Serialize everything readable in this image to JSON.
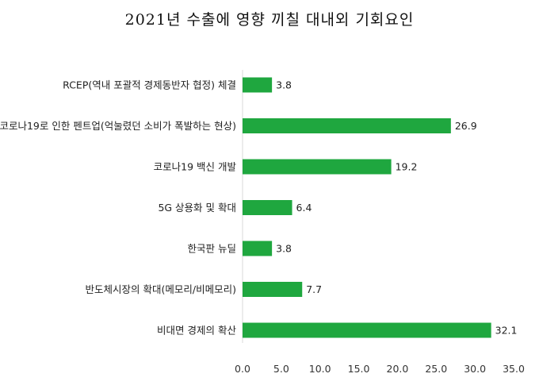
{
  "chart_data": {
    "type": "bar",
    "orientation": "horizontal",
    "title": "2021년 수출에 영향 끼칠 대내외 기회요인",
    "categories": [
      "RCEP(역내 포괄적 경제동반자 협정) 체결",
      "코로나19로 인한 펜트업(억눌렸던 소비가 폭발하는 현상)",
      "코로나19 백신 개발",
      "5G 상용화 및 확대",
      "한국판 뉴딜",
      "반도체시장의 확대(메모리/비메모리)",
      "비대면 경제의 확산"
    ],
    "values": [
      3.8,
      26.9,
      19.2,
      6.4,
      3.8,
      7.7,
      32.1
    ],
    "value_labels": [
      "3.8",
      "26.9",
      "19.2",
      "6.4",
      "3.8",
      "7.7",
      "32.1"
    ],
    "xlim": [
      0,
      35
    ],
    "xticks": [
      "0.0",
      "5.0",
      "10.0",
      "15.0",
      "20.0",
      "25.0",
      "30.0",
      "35.0"
    ],
    "bar_color": "#1fa73f",
    "grid": false,
    "legend": "none"
  }
}
